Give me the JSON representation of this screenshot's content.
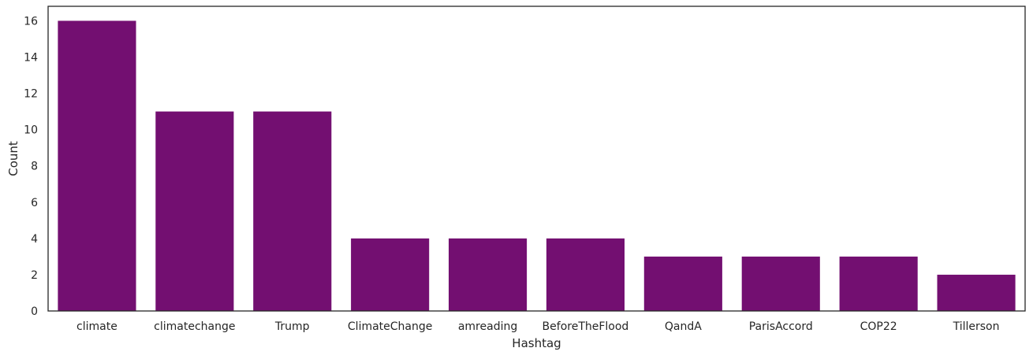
{
  "chart_data": {
    "type": "bar",
    "title": "",
    "xlabel": "Hashtag",
    "ylabel": "Count",
    "categories": [
      "climate",
      "climatechange",
      "Trump",
      "ClimateChange",
      "amreading",
      "BeforeTheFlood",
      "QandA",
      "ParisAccord",
      "COP22",
      "Tillerson"
    ],
    "values": [
      16,
      11,
      11,
      4,
      4,
      4,
      3,
      3,
      3,
      2
    ],
    "ylim": [
      0,
      16.8
    ],
    "yticks": [
      0,
      2,
      4,
      6,
      8,
      10,
      12,
      14,
      16
    ],
    "bar_color": "#730f71",
    "grid": false,
    "legend": "none"
  }
}
